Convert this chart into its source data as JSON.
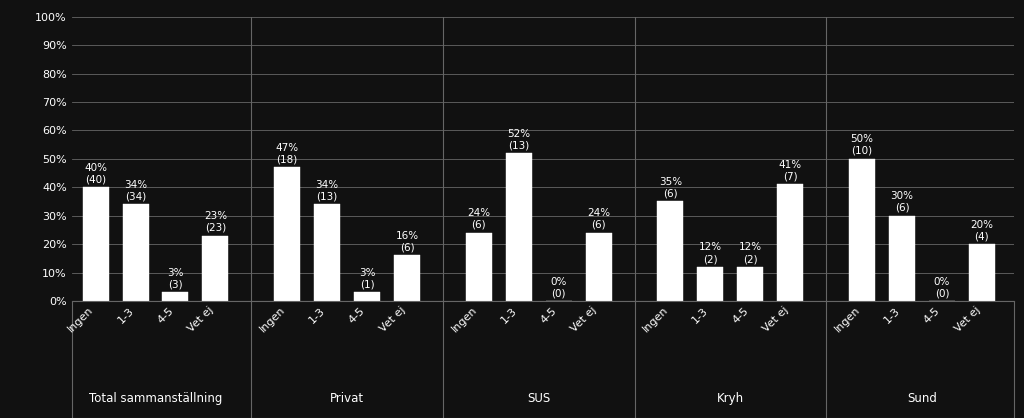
{
  "groups": [
    {
      "name": "Total sammanställning",
      "bars": [
        {
          "label": "Ingen",
          "pct": 40,
          "n": 40
        },
        {
          "label": "1-3",
          "pct": 34,
          "n": 34
        },
        {
          "label": "4-5",
          "pct": 3,
          "n": 3
        },
        {
          "label": "Vet ej",
          "pct": 23,
          "n": 23
        }
      ]
    },
    {
      "name": "Privat",
      "bars": [
        {
          "label": "Ingen",
          "pct": 47,
          "n": 18
        },
        {
          "label": "1-3",
          "pct": 34,
          "n": 13
        },
        {
          "label": "4-5",
          "pct": 3,
          "n": 1
        },
        {
          "label": "Vet ej",
          "pct": 16,
          "n": 6
        }
      ]
    },
    {
      "name": "SUS",
      "bars": [
        {
          "label": "Ingen",
          "pct": 24,
          "n": 6
        },
        {
          "label": "1-3",
          "pct": 52,
          "n": 13
        },
        {
          "label": "4-5",
          "pct": 0,
          "n": 0
        },
        {
          "label": "Vet ej",
          "pct": 24,
          "n": 6
        }
      ]
    },
    {
      "name": "Kryh",
      "bars": [
        {
          "label": "Ingen",
          "pct": 35,
          "n": 6
        },
        {
          "label": "1-3",
          "pct": 12,
          "n": 2
        },
        {
          "label": "4-5",
          "pct": 12,
          "n": 2
        },
        {
          "label": "Vet ej",
          "pct": 41,
          "n": 7
        }
      ]
    },
    {
      "name": "Sund",
      "bars": [
        {
          "label": "Ingen",
          "pct": 50,
          "n": 10
        },
        {
          "label": "1-3",
          "pct": 30,
          "n": 6
        },
        {
          "label": "4-5",
          "pct": 0,
          "n": 0
        },
        {
          "label": "Vet ej",
          "pct": 20,
          "n": 4
        }
      ]
    }
  ],
  "bar_color": "#ffffff",
  "bar_edge_color": "#ffffff",
  "background_color": "#111111",
  "text_color": "#ffffff",
  "grid_color": "#666666",
  "ylim": [
    0,
    100
  ],
  "yticks": [
    0,
    10,
    20,
    30,
    40,
    50,
    60,
    70,
    80,
    90,
    100
  ],
  "ytick_labels": [
    "0%",
    "10%",
    "20%",
    "30%",
    "40%",
    "50%",
    "60%",
    "70%",
    "80%",
    "90%",
    "100%"
  ],
  "bar_width": 0.65,
  "annotation_fontsize": 7.5,
  "tick_fontsize": 8,
  "group_label_fontsize": 8.5,
  "bar_label_fontsize": 8
}
